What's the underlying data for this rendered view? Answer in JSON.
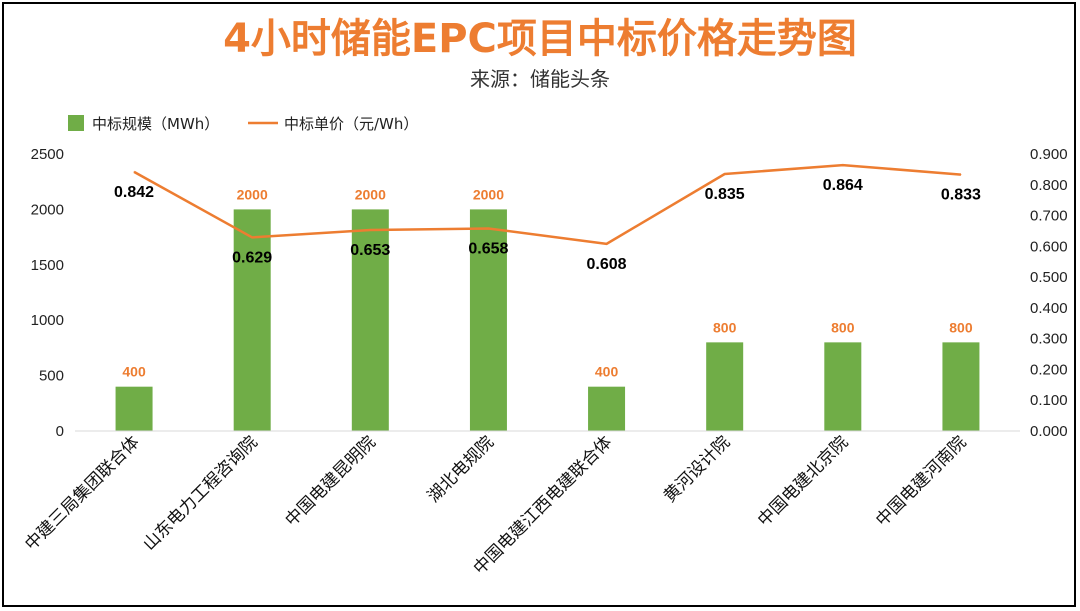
{
  "chart_data": {
    "type": "bar",
    "title": "4小时储能EPC项目中标价格走势图",
    "subtitle": "来源：储能头条",
    "categories": [
      "中建三局集团联合体",
      "山东电力工程咨询院",
      "中国电建昆明院",
      "湖北电规院",
      "中国电建江西电建联合体",
      "黄河设计院",
      "中国电建北京院",
      "中国电建河南院"
    ],
    "series": [
      {
        "name": "中标规模（MWh）",
        "type": "bar",
        "axis": "left",
        "color": "#70AD47",
        "values": [
          400,
          2000,
          2000,
          2000,
          400,
          800,
          800,
          800
        ]
      },
      {
        "name": "中标单价（元/Wh）",
        "type": "line",
        "axis": "right",
        "color": "#ED7D31",
        "values": [
          0.842,
          0.629,
          0.653,
          0.658,
          0.608,
          0.835,
          0.864,
          0.833
        ]
      }
    ],
    "y_left": {
      "min": 0,
      "max": 2500,
      "ticks": [
        "0",
        "500",
        "1000",
        "1500",
        "2000",
        "2500"
      ]
    },
    "y_right": {
      "min": 0,
      "max": 0.9,
      "ticks": [
        "0.000",
        "0.100",
        "0.200",
        "0.300",
        "0.400",
        "0.500",
        "0.600",
        "0.700",
        "0.800",
        "0.900"
      ]
    },
    "bar_labels": [
      "400",
      "2000",
      "2000",
      "2000",
      "400",
      "800",
      "800",
      "800"
    ],
    "line_labels": [
      "0.842",
      "0.629",
      "0.653",
      "0.658",
      "0.608",
      "0.835",
      "0.864",
      "0.833"
    ],
    "legend_position": "top-left",
    "grid": false
  }
}
